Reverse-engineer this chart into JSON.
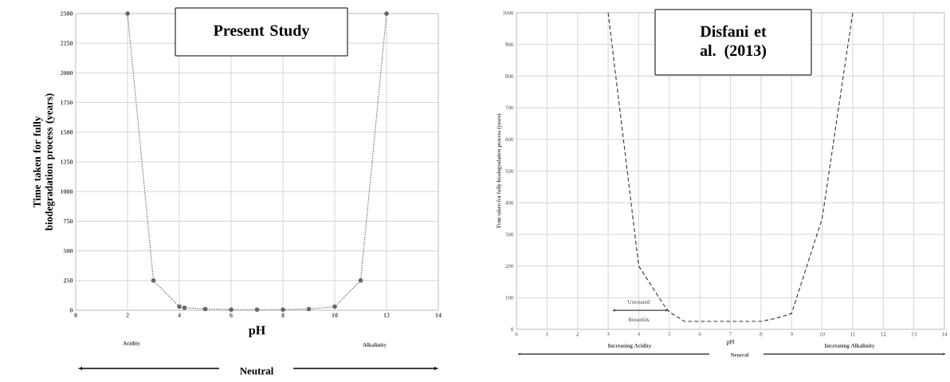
{
  "chart_data": [
    {
      "type": "line",
      "title": "Present Study",
      "xlabel": "pH",
      "ylabel": "Time taken for fully biodegradation process (years)",
      "annotations": [
        "Acidity",
        "Alkalinity",
        "Neutral"
      ],
      "x": [
        2,
        3,
        4,
        4.2,
        5,
        6,
        7,
        8,
        9,
        10,
        11,
        12
      ],
      "series": [
        {
          "color": "#666666",
          "marker": "circle",
          "line_style": "dotted",
          "values": [
            2500,
            250,
            30,
            20,
            10,
            5,
            5,
            5,
            10,
            30,
            250,
            2500
          ]
        }
      ],
      "xlim": [
        0,
        14
      ],
      "ylim": [
        0,
        2500
      ],
      "xticks": [
        0,
        2,
        4,
        6,
        8,
        10,
        12,
        14
      ],
      "yticks": [
        0,
        250,
        500,
        750,
        1000,
        1250,
        1500,
        1750,
        2000,
        2250,
        2500
      ],
      "grid": true
    },
    {
      "type": "line",
      "title": "Disfani et al. (2013)",
      "xlabel": "pH",
      "ylabel": "Time taken for fully biodegradation process (years)",
      "annotations": [
        "Untreated",
        "Biosolids",
        "Increasing Acidity",
        "Neutral",
        "Increasing Alkalinity"
      ],
      "x": [
        3,
        4,
        4.8,
        5,
        5.5,
        6,
        7,
        8,
        8.5,
        9,
        10,
        11
      ],
      "series": [
        {
          "color": "#333333",
          "marker": "none",
          "line_style": "dashed",
          "values": [
            1000,
            200,
            80,
            55,
            25,
            25,
            25,
            25,
            35,
            50,
            350,
            1000
          ]
        }
      ],
      "xlim": [
        0,
        14
      ],
      "ylim": [
        0,
        1000
      ],
      "xticks": [
        0,
        1,
        2,
        3,
        4,
        5,
        6,
        7,
        8,
        9,
        10,
        11,
        12,
        13,
        14
      ],
      "yticks": [
        0,
        100,
        200,
        300,
        400,
        500,
        600,
        700,
        800,
        900,
        1000
      ],
      "grid": true
    }
  ]
}
